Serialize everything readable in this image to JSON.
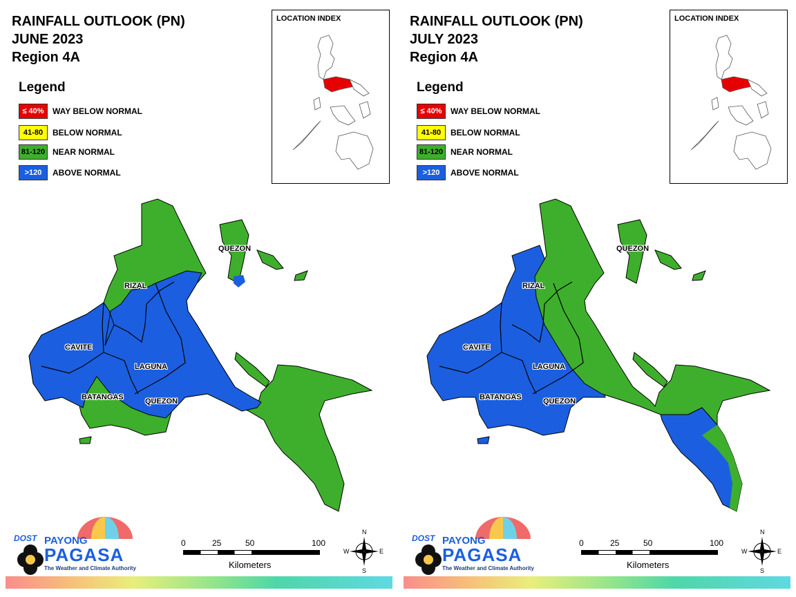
{
  "panels": [
    {
      "title_line1": "RAINFALL OUTLOOK (PN)",
      "title_line2": "JUNE 2023",
      "title_line3": "Region 4A",
      "legend_title": "Legend",
      "legend": [
        {
          "range": "≤ 40%",
          "label": "WAY BELOW NORMAL",
          "color": "#e60000"
        },
        {
          "range": "41-80",
          "label": "BELOW NORMAL",
          "color": "#ffff00"
        },
        {
          "range": "81-120",
          "label": "NEAR NORMAL",
          "color": "#3eaf2c"
        },
        {
          "range": ">120",
          "label": "ABOVE NORMAL",
          "color": "#1b5fe0"
        }
      ],
      "location_index_title": "LOCATION INDEX",
      "provinces": {
        "rizal": "RIZAL",
        "cavite": "CAVITE",
        "laguna": "LAGUNA",
        "batangas": "BATANGAS",
        "quezon_north": "QUEZON",
        "quezon_south": "QUEZON"
      }
    },
    {
      "title_line1": "RAINFALL OUTLOOK (PN)",
      "title_line2": "JULY 2023",
      "title_line3": "Region 4A",
      "legend_title": "Legend",
      "legend": [
        {
          "range": "≤ 40%",
          "label": "WAY BELOW NORMAL",
          "color": "#e60000"
        },
        {
          "range": "41-80",
          "label": "BELOW NORMAL",
          "color": "#ffff00"
        },
        {
          "range": "81-120",
          "label": "NEAR NORMAL",
          "color": "#3eaf2c"
        },
        {
          "range": ">120",
          "label": "ABOVE NORMAL",
          "color": "#1b5fe0"
        }
      ],
      "location_index_title": "LOCATION INDEX",
      "provinces": {
        "rizal": "RIZAL",
        "cavite": "CAVITE",
        "laguna": "LAGUNA",
        "batangas": "BATANGAS",
        "quezon_north": "QUEZON",
        "quezon_south": "QUEZON"
      }
    }
  ],
  "scale": {
    "ticks": [
      "0",
      "25",
      "50",
      "100"
    ],
    "unit": "Kilometers"
  },
  "compass": {
    "n": "N",
    "s": "S",
    "e": "E",
    "w": "W"
  },
  "logo": {
    "dost": "DOST",
    "payong": "PAYONG",
    "pagasa": "PAGASA",
    "tagline": "The Weather and Climate Authority"
  },
  "colors": {
    "near_normal": "#3eaf2c",
    "above_normal": "#1b5fe0",
    "index_highlight": "#e60000"
  }
}
